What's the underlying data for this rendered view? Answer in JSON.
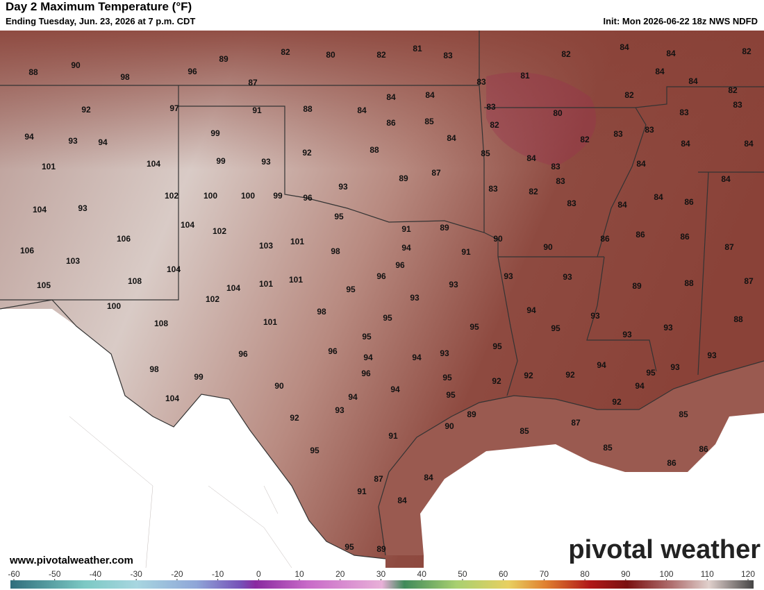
{
  "header": {
    "title": "Day 2 Maximum Temperature (°F)",
    "subtitle": "Ending Tuesday, Jun. 23, 2026 at 7 p.m. CDT",
    "init": "Init: Mon 2026-06-22 18z NWS NDFD"
  },
  "map_labels": [
    88,
    90,
    98,
    96,
    89,
    82,
    80,
    82,
    81,
    83,
    82,
    84,
    84,
    82,
    87,
    83,
    81,
    84,
    84,
    82,
    92,
    97,
    91,
    88,
    84,
    84,
    84,
    83,
    80,
    82,
    83,
    83,
    86,
    85,
    82,
    83,
    94,
    93,
    94,
    99,
    84,
    83,
    82,
    84,
    84,
    92,
    88,
    85,
    84,
    101,
    104,
    99,
    93,
    87,
    83,
    84,
    89,
    84,
    93,
    83,
    82,
    83,
    102,
    100,
    100,
    99,
    96,
    84,
    86,
    83,
    84,
    104,
    93,
    95,
    104,
    102,
    91,
    89,
    90,
    86,
    86,
    86,
    106,
    101,
    103,
    98,
    94,
    91,
    90,
    87,
    106,
    103,
    96,
    104,
    96,
    93,
    93,
    108,
    105,
    104,
    101,
    101,
    93,
    89,
    88,
    87,
    95,
    93,
    102,
    100,
    98,
    94,
    93,
    88,
    101,
    95,
    108,
    95,
    95,
    93,
    93,
    95,
    95,
    96,
    96,
    94,
    94,
    93,
    94,
    93,
    93,
    98,
    96,
    95,
    99,
    95,
    92,
    92,
    92,
    94,
    90,
    94,
    95,
    104,
    94,
    92,
    93,
    89,
    85,
    92,
    87,
    90,
    85,
    91,
    85,
    86,
    95,
    86,
    84,
    87,
    91,
    84,
    95,
    89
  ],
  "footer": {
    "website": "www.pivotalweather.com",
    "logo": "pivotal weather"
  },
  "colorbar": {
    "lim": [
      -60,
      120
    ],
    "ticks": [
      -60,
      -50,
      -40,
      -30,
      -20,
      -10,
      0,
      10,
      20,
      30,
      40,
      50,
      60,
      70,
      80,
      90,
      100,
      110,
      120
    ]
  }
}
